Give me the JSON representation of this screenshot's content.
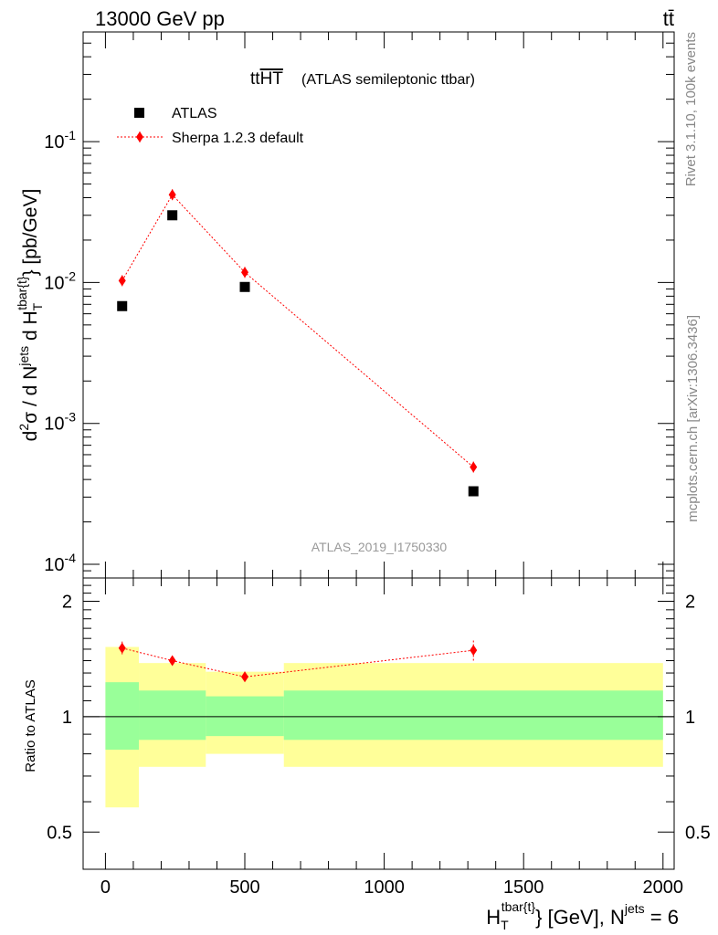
{
  "header": {
    "energy_label": "13000 GeV pp",
    "process_label": "tt̄"
  },
  "side_labels": {
    "rivet": "Rivet 3.1.10,  100k events",
    "mcplots": "mcplots.cern.ch [arXiv:1306.3436]"
  },
  "chart_data": [
    {
      "type": "scatter",
      "panel": "main",
      "title_main": "tt",
      "title_over": "HT",
      "title_sub": "(ATLAS semileptonic ttbar)",
      "watermark": "ATLAS_2019_I1750330",
      "ylabel": "d²σ / d N^jets d H_T^tbar{t} [pb/GeV]",
      "yscale": "log",
      "xlim": [
        -80,
        2040
      ],
      "ylim": [
        8e-05,
        0.6
      ],
      "yticks": [
        {
          "value": 0.1,
          "label": "10^-1"
        },
        {
          "value": 0.01,
          "label": "10^-2"
        },
        {
          "value": 0.001,
          "label": "10^-3"
        },
        {
          "value": 0.0001,
          "label": "10^-4"
        }
      ],
      "legend_position": "top-left",
      "series": [
        {
          "name": "ATLAS",
          "marker": "square",
          "color": "#000000",
          "points": [
            {
              "x": 60,
              "y": 0.0068
            },
            {
              "x": 240,
              "y": 0.03
            },
            {
              "x": 500,
              "y": 0.0093
            },
            {
              "x": 1320,
              "y": 0.00033
            }
          ]
        },
        {
          "name": "Sherpa 1.2.3 default",
          "marker": "diamond",
          "line": "dotted",
          "color": "#ff0000",
          "points": [
            {
              "x": 60,
              "y": 0.0103,
              "err": 0.0004
            },
            {
              "x": 240,
              "y": 0.042,
              "err": 0.0015
            },
            {
              "x": 500,
              "y": 0.0118,
              "err": 0.0005
            },
            {
              "x": 1320,
              "y": 0.00049,
              "err": 3e-05
            }
          ]
        }
      ]
    },
    {
      "type": "line",
      "panel": "ratio",
      "ylabel": "Ratio to ATLAS",
      "xlabel_main": "H",
      "xlabel_sub": "T",
      "xlabel_sup": "tbar{t}",
      "xlabel_mid": "} [GeV], N",
      "xlabel_sup2": "jets",
      "xlabel_end": " = 6",
      "xlim": [
        -80,
        2040
      ],
      "ylim": [
        0.4,
        2.3
      ],
      "yscale": "log",
      "xticks": [
        {
          "value": 0,
          "label": "0"
        },
        {
          "value": 500,
          "label": "500"
        },
        {
          "value": 1000,
          "label": "1000"
        },
        {
          "value": 1500,
          "label": "1500"
        },
        {
          "value": 2000,
          "label": "2000"
        }
      ],
      "yticks": [
        {
          "value": 0.5,
          "label": "0.5"
        },
        {
          "value": 1,
          "label": "1"
        },
        {
          "value": 2,
          "label": "2"
        }
      ],
      "bands": [
        {
          "x0": 0,
          "x1": 120,
          "yellow": [
            0.58,
            1.52
          ],
          "green": [
            0.82,
            1.23
          ]
        },
        {
          "x0": 120,
          "x1": 360,
          "yellow": [
            0.74,
            1.38
          ],
          "green": [
            0.87,
            1.17
          ]
        },
        {
          "x0": 360,
          "x1": 640,
          "yellow": [
            0.8,
            1.31
          ],
          "green": [
            0.89,
            1.13
          ]
        },
        {
          "x0": 640,
          "x1": 2000,
          "yellow": [
            0.74,
            1.38
          ],
          "green": [
            0.87,
            1.17
          ]
        }
      ],
      "band_colors": {
        "yellow": "#ffff99",
        "green": "#99ff99"
      },
      "series": [
        {
          "name": "Sherpa 1.2.3 default",
          "color": "#ff0000",
          "points": [
            {
              "x": 60,
              "y": 1.51,
              "err": 0.06
            },
            {
              "x": 240,
              "y": 1.4,
              "err": 0.03
            },
            {
              "x": 500,
              "y": 1.27,
              "err": 0.04
            },
            {
              "x": 1320,
              "y": 1.49,
              "err": 0.09
            }
          ]
        }
      ]
    }
  ]
}
